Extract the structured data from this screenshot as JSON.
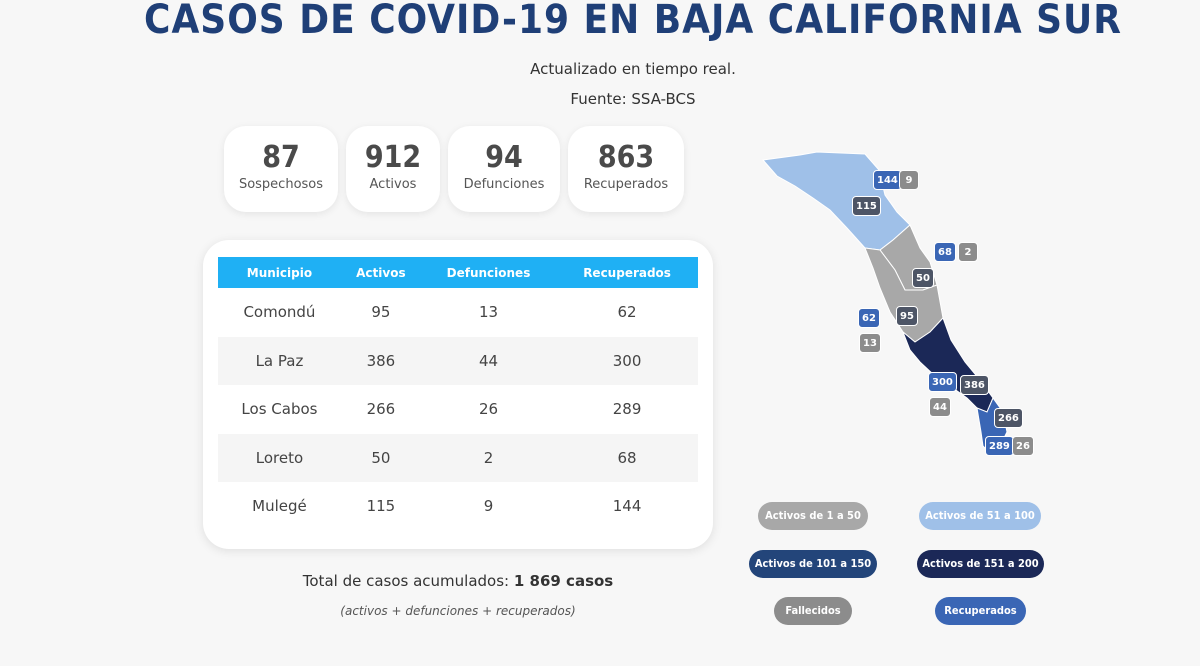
{
  "title": "CASOS DE COVID-19 EN BAJA CALIFORNIA SUR",
  "subtitle_line1": "Actualizado en tiempo real.",
  "subtitle_line2": "Fuente: SSA-BCS",
  "stats": {
    "sospechosos": {
      "value": "87",
      "label": "Sospechosos"
    },
    "activos": {
      "value": "912",
      "label": "Activos"
    },
    "defunciones": {
      "value": "94",
      "label": "Defunciones"
    },
    "recuperados": {
      "value": "863",
      "label": "Recuperados"
    }
  },
  "table": {
    "headers": [
      "Municipio",
      "Activos",
      "Defunciones",
      "Recuperados"
    ],
    "rows": [
      [
        "Comondú",
        "95",
        "13",
        "62"
      ],
      [
        "La Paz",
        "386",
        "44",
        "300"
      ],
      [
        "Los Cabos",
        "266",
        "26",
        "289"
      ],
      [
        "Loreto",
        "50",
        "2",
        "68"
      ],
      [
        "Mulegé",
        "115",
        "9",
        "144"
      ]
    ]
  },
  "total": {
    "prefix": "Total de casos acumulados: ",
    "value": "1 869 casos",
    "note": "(activos + defunciones + recuperados)"
  },
  "map_badges": {
    "mulege_rec": "144",
    "mulege_def": "9",
    "mulege_act": "115",
    "loreto_rec": "68",
    "loreto_def": "2",
    "loreto_act": "50",
    "comondu_rec": "62",
    "comondu_def": "13",
    "comondu_act": "95",
    "lapaz_rec": "300",
    "lapaz_def": "44",
    "lapaz_act": "386",
    "cabos_act": "266",
    "cabos_rec": "289",
    "cabos_def": "26"
  },
  "legend": {
    "l1": "Activos de 1 a 50",
    "l2": "Activos de 51 a 100",
    "l3": "Activos de 101 a 150",
    "l4": "Activos de 151 a 200",
    "l5": "Fallecidos",
    "l6": "Recuperados"
  },
  "colors": {
    "title": "#1f3f77",
    "table_header": "#1fb0f4",
    "range_1_50": "#a8a8a8",
    "range_51_100": "#9fc0e8",
    "range_101_150": "#23457a",
    "range_151_200": "#1b2857",
    "fallecidos": "#8c8c8c",
    "recuperados": "#3a66b5"
  }
}
